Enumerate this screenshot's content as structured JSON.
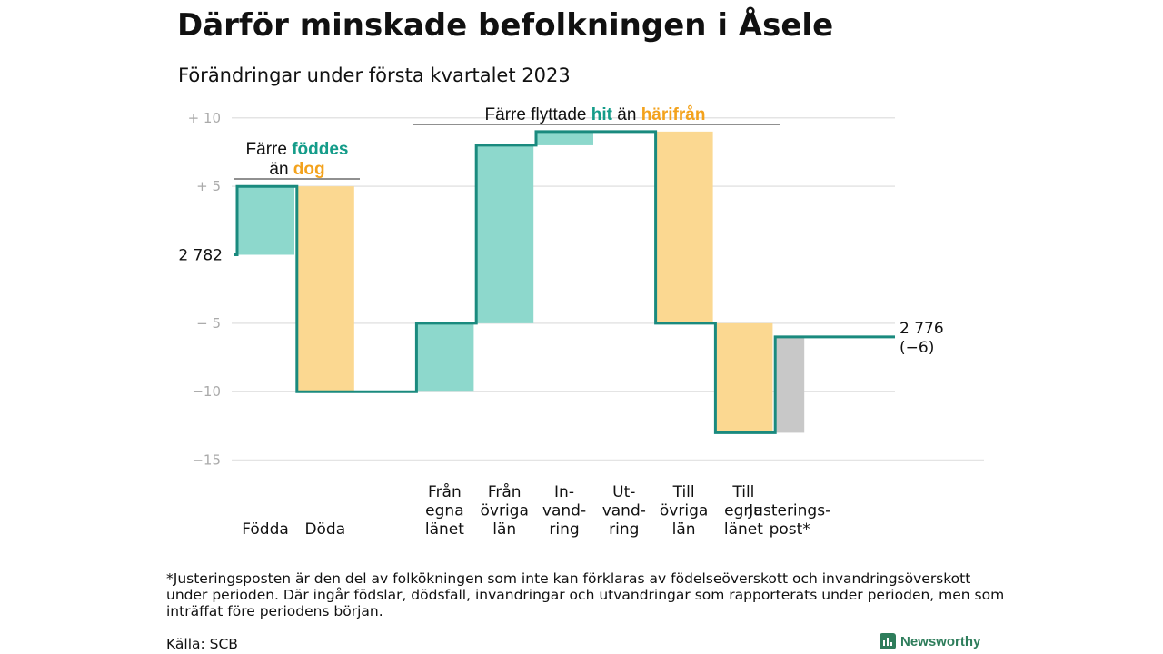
{
  "header": {
    "title": "Därför minskade befolkningen i Åsele",
    "subtitle": "Förändringar under första kvartalet 2023"
  },
  "colors": {
    "step_line": "#1a8a7e",
    "increase": "#8dd8cc",
    "decrease": "#fbd891",
    "adjustment": "#c8c8c8",
    "highlight_teal": "#149c89",
    "highlight_orange": "#f3a21c",
    "grid": "#e4e4e4",
    "brand": "#2e7d5b"
  },
  "chart_data": {
    "type": "waterfall",
    "start_label": "2 782",
    "end_label_line1": "2 776",
    "end_label_line2": "(−6)",
    "start_value": 2782,
    "end_value": 2776,
    "yticks": [
      {
        "label": "+ 10",
        "value": 10
      },
      {
        "label": "+ 5",
        "value": 5
      },
      {
        "label": "− 5",
        "value": -5
      },
      {
        "label": "−10",
        "value": -10
      },
      {
        "label": "−15",
        "value": -15
      }
    ],
    "ylim": [
      -15,
      10
    ],
    "steps": [
      {
        "category": [
          "Födda"
        ],
        "change": 5,
        "kind": "increase"
      },
      {
        "category": [
          "Döda"
        ],
        "change": -15,
        "kind": "decrease"
      },
      {
        "category": [
          "Från",
          "egna",
          "länet"
        ],
        "change": 5,
        "kind": "increase"
      },
      {
        "category": [
          "Från",
          "övriga",
          "län"
        ],
        "change": 13,
        "kind": "increase"
      },
      {
        "category": [
          "In-",
          "vand-",
          "ring"
        ],
        "change": 1,
        "kind": "increase"
      },
      {
        "category": [
          "Ut-",
          "vand-",
          "ring"
        ],
        "change": 0,
        "kind": "decrease"
      },
      {
        "category": [
          "Till",
          "övriga",
          "län"
        ],
        "change": -14,
        "kind": "decrease"
      },
      {
        "category": [
          "Till",
          "egna",
          "länet"
        ],
        "change": -8,
        "kind": "decrease"
      },
      {
        "category": [
          "Justerings-",
          "post*"
        ],
        "change": 7,
        "kind": "adjustment"
      }
    ],
    "annotations": {
      "births_line1_pre": "Färre ",
      "births_line1_hl": "föddes",
      "births_line2_pre": "än ",
      "births_line2_hl": "dog",
      "moves_pre": "Färre flyttade ",
      "moves_hl1": "hit",
      "moves_mid": " än ",
      "moves_hl2": "härifrån"
    }
  },
  "footer": {
    "footnote": "*Justeringsposten är den del av folkökningen som inte kan förklaras av födelseöverskott och invandringsöverskott under perioden. Där ingår födslar, dödsfall, invandringar och utvandringar som rapporterats under perioden, men som inträffat före periodens början.",
    "source": "Källa: SCB",
    "logo_text": "Newsworthy"
  }
}
